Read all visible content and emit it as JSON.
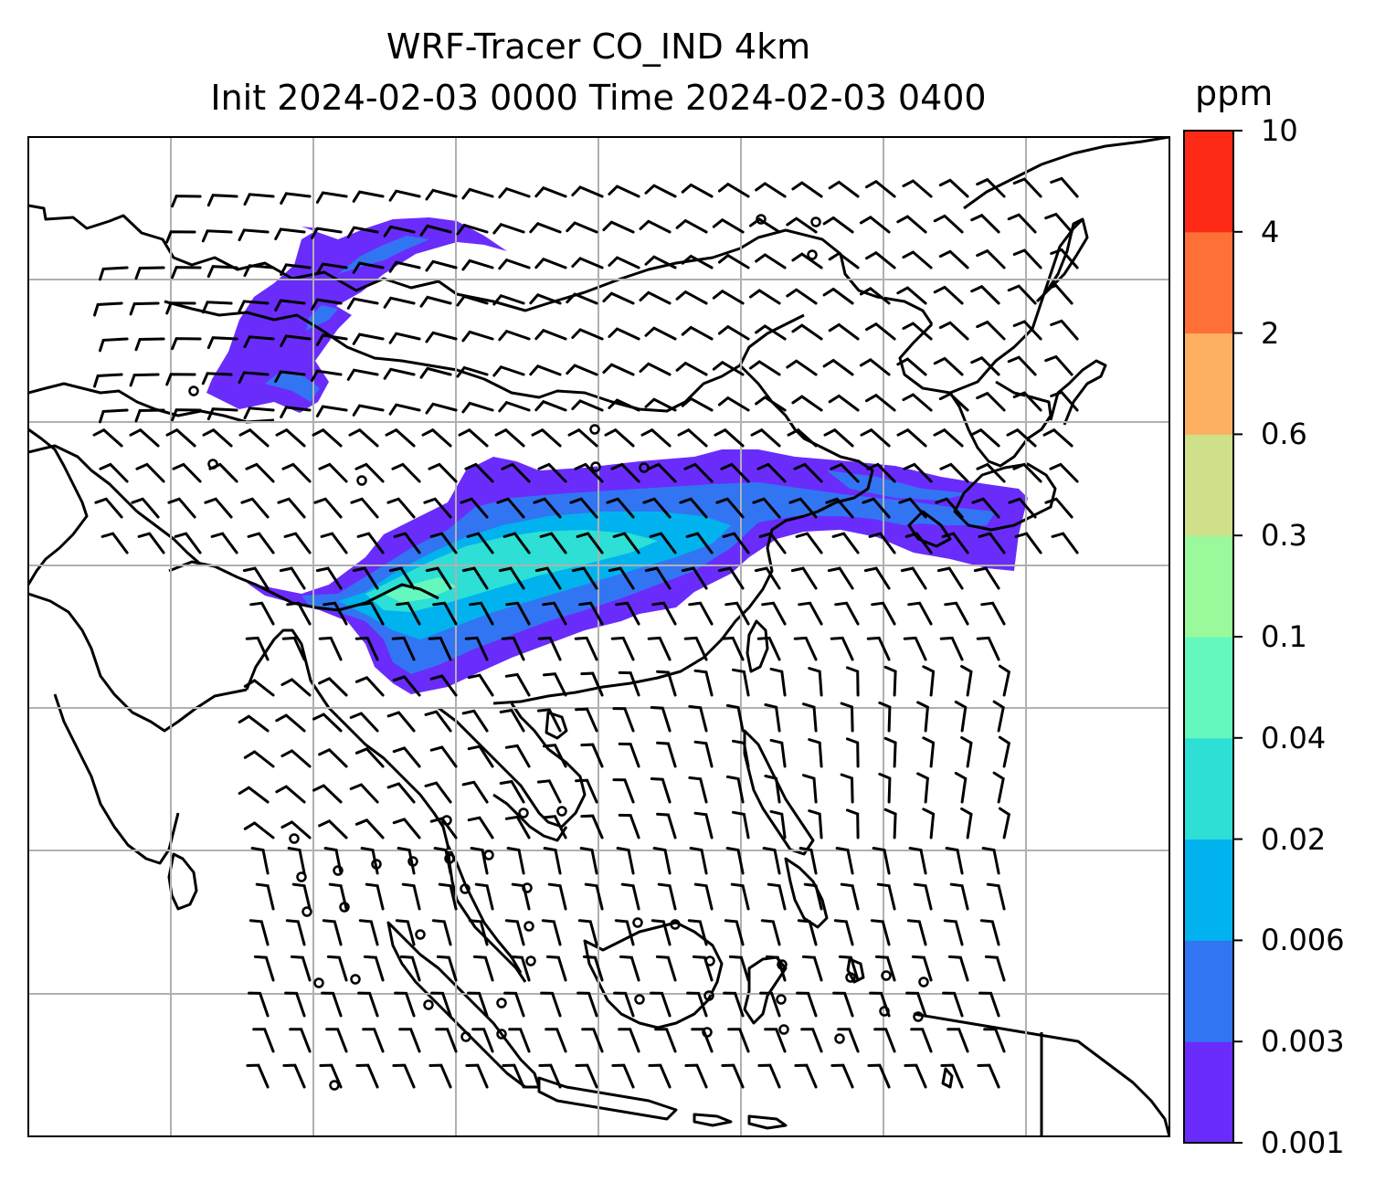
{
  "title": {
    "line1": "WRF-Tracer CO_IND 4km",
    "line2": "Init 2024-02-03 0000 Time 2024-02-03 0400"
  },
  "colorbar": {
    "unit": "ppm",
    "levels": [
      "0.001",
      "0.003",
      "0.006",
      "0.02",
      "0.04",
      "0.1",
      "0.3",
      "0.6",
      "2",
      "4",
      "10"
    ],
    "colors": [
      "#6a2cfb",
      "#3275f3",
      "#00b3ee",
      "#2ddfd4",
      "#65f8be",
      "#9af99a",
      "#cfe08a",
      "#fdb061",
      "#fe7038",
      "#fe2a15"
    ]
  },
  "map": {
    "field": "CO_IND tracer concentration",
    "overlay": "wind barbs",
    "gridlines": true,
    "coastlines": true
  }
}
